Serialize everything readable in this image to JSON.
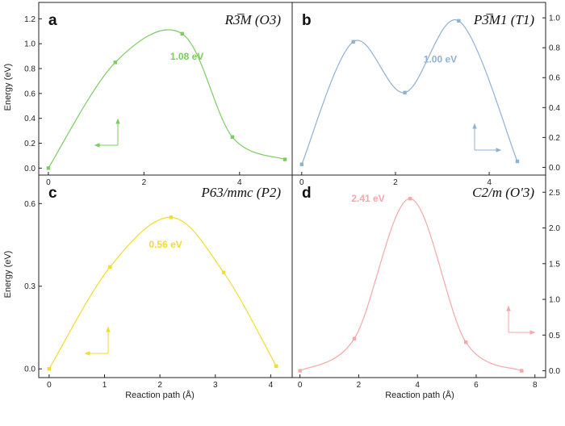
{
  "figure": {
    "shared_x_label": "Reaction path (Å)",
    "shared_y_label_top": "Energy (eV)",
    "shared_y_label_bottom": "Energy (eV)"
  },
  "chart_data": [
    {
      "type": "line",
      "panel": "a",
      "title": "R3̅M (O3)",
      "color": "#7ccc63",
      "y_axis_side": "left",
      "xlim": [
        -0.1,
        5.0
      ],
      "ylim": [
        -0.03,
        1.28
      ],
      "xticks": [
        0,
        2,
        4
      ],
      "yticks": [
        0.0,
        0.2,
        0.4,
        0.6,
        0.8,
        1.0,
        1.2
      ],
      "ytick_labels": [
        "0.0",
        "0.2",
        "0.4",
        "0.6",
        "0.8",
        "1.0",
        "1.2"
      ],
      "points": [
        [
          0.0,
          0.0
        ],
        [
          1.4,
          0.85
        ],
        [
          2.8,
          1.08
        ],
        [
          3.85,
          0.25
        ],
        [
          4.95,
          0.07
        ]
      ],
      "annotation": "1.08 eV",
      "annotation_pos": [
        2.55,
        0.87
      ]
    },
    {
      "type": "line",
      "panel": "b",
      "title": "P3̅M1 (T1)",
      "color": "#90b0d4",
      "y_axis_side": "right",
      "xlim": [
        -0.1,
        5.1
      ],
      "ylim": [
        -0.03,
        1.06
      ],
      "xticks": [
        0,
        2,
        4
      ],
      "yticks": [
        0.0,
        0.2,
        0.4,
        0.6,
        0.8,
        1.0
      ],
      "ytick_labels": [
        "0.0",
        "0.2",
        "0.4",
        "0.6",
        "0.8",
        "1.0"
      ],
      "points": [
        [
          0.0,
          0.02
        ],
        [
          1.1,
          0.84
        ],
        [
          2.2,
          0.5
        ],
        [
          3.35,
          0.98
        ],
        [
          4.6,
          0.04
        ]
      ],
      "annotation": "1.00 eV",
      "annotation_pos": [
        2.6,
        0.7
      ]
    },
    {
      "type": "line",
      "panel": "c",
      "title": "P63/mmc (P2)",
      "color": "#f2dc2e",
      "y_axis_side": "left",
      "xlim": [
        -0.1,
        4.3
      ],
      "ylim": [
        -0.02,
        0.68
      ],
      "xticks": [
        0,
        1,
        2,
        3,
        4
      ],
      "yticks": [
        0.0,
        0.3,
        0.6
      ],
      "ytick_labels": [
        "0.0",
        "0.3",
        "0.6"
      ],
      "points": [
        [
          0.0,
          0.0
        ],
        [
          1.1,
          0.37
        ],
        [
          2.2,
          0.55
        ],
        [
          3.15,
          0.35
        ],
        [
          4.1,
          0.01
        ]
      ],
      "annotation": "0.56 eV",
      "annotation_pos": [
        1.8,
        0.44
      ]
    },
    {
      "type": "line",
      "panel": "d",
      "title": "C2/m (O'3)",
      "color": "#f5a8a8",
      "y_axis_side": "right",
      "xlim": [
        -0.1,
        8.2
      ],
      "ylim": [
        -0.05,
        2.65
      ],
      "xticks": [
        0,
        2,
        4,
        6,
        8
      ],
      "yticks": [
        0.0,
        0.5,
        1.0,
        1.5,
        2.0,
        2.5
      ],
      "ytick_labels": [
        "0.0",
        "0.5",
        "1.0",
        "1.5",
        "2.0",
        "2.5"
      ],
      "points": [
        [
          0.0,
          0.0
        ],
        [
          1.85,
          0.45
        ],
        [
          3.75,
          2.41
        ],
        [
          5.65,
          0.4
        ],
        [
          7.55,
          0.0
        ]
      ],
      "annotation": "2.41 eV",
      "annotation_pos": [
        1.75,
        2.37
      ]
    }
  ]
}
